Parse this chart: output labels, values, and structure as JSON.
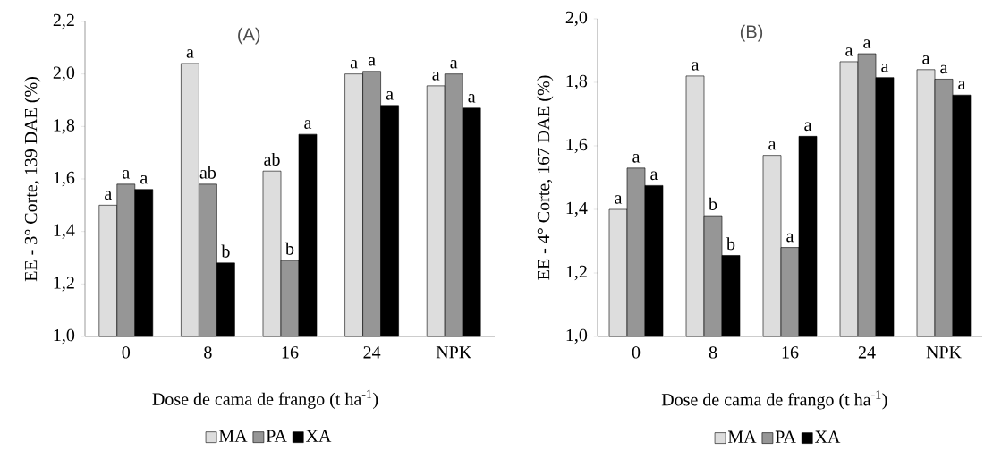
{
  "chart_data": [
    {
      "type": "bar",
      "title": "(A)",
      "xlabel": "Dose de cama de frango (t ha$^{-1}$)",
      "ylabel": "EE - 3° Corte, 139 DAE (%)",
      "categories": [
        "0",
        "8",
        "16",
        "24",
        "NPK"
      ],
      "series": [
        {
          "name": "MA",
          "color": "#dddddd",
          "values": [
            1.5,
            2.04,
            1.63,
            2.0,
            1.955
          ]
        },
        {
          "name": "PA",
          "color": "#969696",
          "values": [
            1.58,
            1.58,
            1.29,
            2.01,
            2.0
          ]
        },
        {
          "name": "XA",
          "color": "#000000",
          "values": [
            1.56,
            1.28,
            1.77,
            1.88,
            1.87
          ]
        }
      ],
      "ylim": [
        1.0,
        2.2
      ],
      "yticks": [
        {
          "value": 1.0,
          "label": "1,0"
        },
        {
          "value": 1.2,
          "label": "1,2"
        },
        {
          "value": 1.4,
          "label": "1,4"
        },
        {
          "value": 1.6,
          "label": "1,6"
        },
        {
          "value": 1.8,
          "label": "1,8"
        },
        {
          "value": 2.0,
          "label": "2,0"
        },
        {
          "value": 2.2,
          "label": "2,2"
        }
      ],
      "legend": "bottom",
      "annotations": [
        "a",
        "a",
        "a",
        "a",
        "ab",
        "b",
        "ab",
        "b",
        "a",
        "a",
        "a",
        "a",
        "a",
        "a",
        "a"
      ]
    },
    {
      "type": "bar",
      "title": "(B)",
      "xlabel": "Dose de cama de frango (t ha$^{-1}$)",
      "ylabel": "EE - 4° Corte, 167 DAE (%)",
      "categories": [
        "0",
        "8",
        "16",
        "24",
        "NPK"
      ],
      "series": [
        {
          "name": "MA",
          "color": "#dddddd",
          "values": [
            1.4,
            1.82,
            1.57,
            1.865,
            1.84
          ]
        },
        {
          "name": "PA",
          "color": "#969696",
          "values": [
            1.53,
            1.38,
            1.28,
            1.89,
            1.81
          ]
        },
        {
          "name": "XA",
          "color": "#000000",
          "values": [
            1.475,
            1.255,
            1.63,
            1.815,
            1.76
          ]
        }
      ],
      "ylim": [
        1.0,
        2.0
      ],
      "yticks": [
        {
          "value": 1.0,
          "label": "1,0"
        },
        {
          "value": 1.2,
          "label": "1,2"
        },
        {
          "value": 1.4,
          "label": "1,4"
        },
        {
          "value": 1.6,
          "label": "1,6"
        },
        {
          "value": 1.8,
          "label": "1,8"
        },
        {
          "value": 2.0,
          "label": "2,0"
        }
      ],
      "legend": "bottom",
      "annotations": [
        "a",
        "a",
        "a",
        "a",
        "b",
        "b",
        "a",
        "a",
        "a",
        "a",
        "a",
        "a",
        "a",
        "a",
        "a"
      ]
    }
  ]
}
